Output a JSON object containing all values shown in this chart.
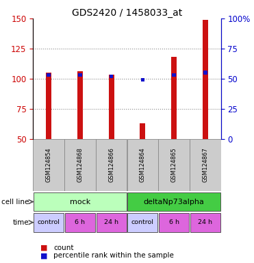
{
  "title": "GDS2420 / 1458033_at",
  "samples": [
    "GSM124854",
    "GSM124868",
    "GSM124866",
    "GSM124864",
    "GSM124865",
    "GSM124867"
  ],
  "count_values": [
    105,
    106,
    103,
    63,
    118,
    149
  ],
  "percentile_values": [
    53,
    53,
    52,
    49,
    53,
    55
  ],
  "ylim_left": [
    50,
    150
  ],
  "ylim_right": [
    0,
    100
  ],
  "bar_color_red": "#cc1111",
  "bar_color_blue": "#1111cc",
  "bar_width": 0.18,
  "blue_bar_width": 0.12,
  "blue_bar_height": 3.0,
  "cell_line_groups": [
    {
      "label": "mock",
      "start": 0,
      "end": 3,
      "color": "#bbffbb"
    },
    {
      "label": "deltaNp73alpha",
      "start": 3,
      "end": 6,
      "color": "#44cc44"
    }
  ],
  "time_labels": [
    "control",
    "6 h",
    "24 h",
    "control",
    "6 h",
    "24 h"
  ],
  "time_colors": [
    "#ccccff",
    "#dd66dd",
    "#dd66dd",
    "#ccccff",
    "#dd66dd",
    "#dd66dd"
  ],
  "sample_box_color": "#cccccc",
  "legend_count_color": "#cc1111",
  "legend_pct_color": "#1111cc",
  "dotted_line_color": "#888888",
  "ylabel_left_color": "#cc0000",
  "ylabel_right_color": "#0000cc",
  "grid_yticks": [
    75,
    100,
    125
  ],
  "left_yticks": [
    50,
    75,
    100,
    125,
    150
  ],
  "right_yticks": [
    0,
    25,
    50,
    75,
    100
  ]
}
